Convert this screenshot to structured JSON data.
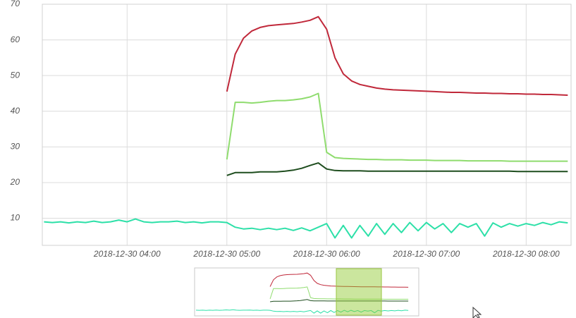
{
  "chart_data": {
    "type": "line",
    "x": [
      "2018-12-30 03:10",
      "2018-12-30 03:15",
      "2018-12-30 03:20",
      "2018-12-30 03:25",
      "2018-12-30 03:30",
      "2018-12-30 03:35",
      "2018-12-30 03:40",
      "2018-12-30 03:45",
      "2018-12-30 03:50",
      "2018-12-30 03:55",
      "2018-12-30 04:00",
      "2018-12-30 04:05",
      "2018-12-30 04:10",
      "2018-12-30 04:15",
      "2018-12-30 04:20",
      "2018-12-30 04:25",
      "2018-12-30 04:30",
      "2018-12-30 04:35",
      "2018-12-30 04:40",
      "2018-12-30 04:45",
      "2018-12-30 04:50",
      "2018-12-30 04:55",
      "2018-12-30 05:00",
      "2018-12-30 05:05",
      "2018-12-30 05:10",
      "2018-12-30 05:15",
      "2018-12-30 05:20",
      "2018-12-30 05:25",
      "2018-12-30 05:30",
      "2018-12-30 05:35",
      "2018-12-30 05:40",
      "2018-12-30 05:45",
      "2018-12-30 05:50",
      "2018-12-30 05:55",
      "2018-12-30 06:00",
      "2018-12-30 06:05",
      "2018-12-30 06:10",
      "2018-12-30 06:15",
      "2018-12-30 06:20",
      "2018-12-30 06:25",
      "2018-12-30 06:30",
      "2018-12-30 06:35",
      "2018-12-30 06:40",
      "2018-12-30 06:45",
      "2018-12-30 06:50",
      "2018-12-30 06:55",
      "2018-12-30 07:00",
      "2018-12-30 07:05",
      "2018-12-30 07:10",
      "2018-12-30 07:15",
      "2018-12-30 07:20",
      "2018-12-30 07:25",
      "2018-12-30 07:30",
      "2018-12-30 07:35",
      "2018-12-30 07:40",
      "2018-12-30 07:45",
      "2018-12-30 07:50",
      "2018-12-30 07:55",
      "2018-12-30 08:00",
      "2018-12-30 08:05",
      "2018-12-30 08:10",
      "2018-12-30 08:15",
      "2018-12-30 08:20",
      "2018-12-30 08:25"
    ],
    "series": [
      {
        "color": "#c0283a",
        "values": [
          null,
          null,
          null,
          null,
          null,
          null,
          null,
          null,
          null,
          null,
          null,
          null,
          null,
          null,
          null,
          null,
          null,
          null,
          null,
          null,
          null,
          null,
          45.5,
          56,
          60.5,
          62.5,
          63.5,
          64,
          64.2,
          64.4,
          64.6,
          65,
          65.5,
          66.5,
          63,
          55,
          50.5,
          48.5,
          47.5,
          47,
          46.5,
          46.2,
          46,
          45.9,
          45.8,
          45.7,
          45.6,
          45.5,
          45.4,
          45.3,
          45.3,
          45.2,
          45.1,
          45.1,
          45,
          45,
          44.9,
          44.9,
          44.8,
          44.8,
          44.7,
          44.7,
          44.6,
          44.5
        ]
      },
      {
        "color": "#8fdc6e",
        "values": [
          null,
          null,
          null,
          null,
          null,
          null,
          null,
          null,
          null,
          null,
          null,
          null,
          null,
          null,
          null,
          null,
          null,
          null,
          null,
          null,
          null,
          null,
          26.5,
          42.5,
          42.5,
          42.3,
          42.5,
          42.8,
          43,
          43,
          43.2,
          43.5,
          44,
          45,
          28.5,
          27,
          26.8,
          26.7,
          26.6,
          26.5,
          26.5,
          26.4,
          26.4,
          26.4,
          26.3,
          26.3,
          26.3,
          26.2,
          26.2,
          26.2,
          26.2,
          26.1,
          26.1,
          26.1,
          26.1,
          26.1,
          26,
          26,
          26,
          26,
          26,
          26,
          26,
          26
        ]
      },
      {
        "color": "#1e4d1e",
        "values": [
          null,
          null,
          null,
          null,
          null,
          null,
          null,
          null,
          null,
          null,
          null,
          null,
          null,
          null,
          null,
          null,
          null,
          null,
          null,
          null,
          null,
          null,
          22,
          22.8,
          22.8,
          22.8,
          23,
          23,
          23,
          23.2,
          23.5,
          24,
          24.8,
          25.5,
          23.8,
          23.4,
          23.3,
          23.3,
          23.3,
          23.2,
          23.2,
          23.2,
          23.2,
          23.2,
          23.2,
          23.2,
          23.2,
          23.2,
          23.2,
          23.2,
          23.2,
          23.2,
          23.2,
          23.2,
          23.2,
          23.2,
          23.2,
          23.1,
          23.1,
          23.1,
          23.1,
          23.1,
          23.1,
          23.1
        ]
      },
      {
        "color": "#2de0a8",
        "values": [
          9,
          8.8,
          9,
          8.7,
          9,
          8.8,
          9.2,
          8.8,
          9,
          9.5,
          9,
          9.8,
          9,
          8.8,
          9,
          9,
          9.2,
          8.8,
          9,
          8.7,
          9,
          9,
          8.8,
          7.5,
          7,
          7.2,
          6.8,
          7.2,
          6.8,
          7.2,
          6.6,
          7.3,
          6.5,
          7.5,
          8.5,
          4.5,
          8,
          4.5,
          8,
          5,
          8.5,
          5.5,
          8.5,
          6,
          8.8,
          6.5,
          8.8,
          7,
          8.5,
          6,
          8.5,
          7.5,
          8.5,
          5,
          8.7,
          7.5,
          8.5,
          7.8,
          8.5,
          8,
          8.8,
          8.2,
          9,
          8.7
        ]
      }
    ],
    "xlim": [
      "2018-12-30 03:09",
      "2018-12-30 08:27"
    ],
    "xticks": [
      "2018-12-30 04:00",
      "2018-12-30 05:00",
      "2018-12-30 06:00",
      "2018-12-30 07:00",
      "2018-12-30 08:00"
    ],
    "ylim": [
      2.4,
      70
    ],
    "yticks": [
      10,
      20,
      30,
      40,
      50,
      60,
      70
    ],
    "grid": true
  }
}
